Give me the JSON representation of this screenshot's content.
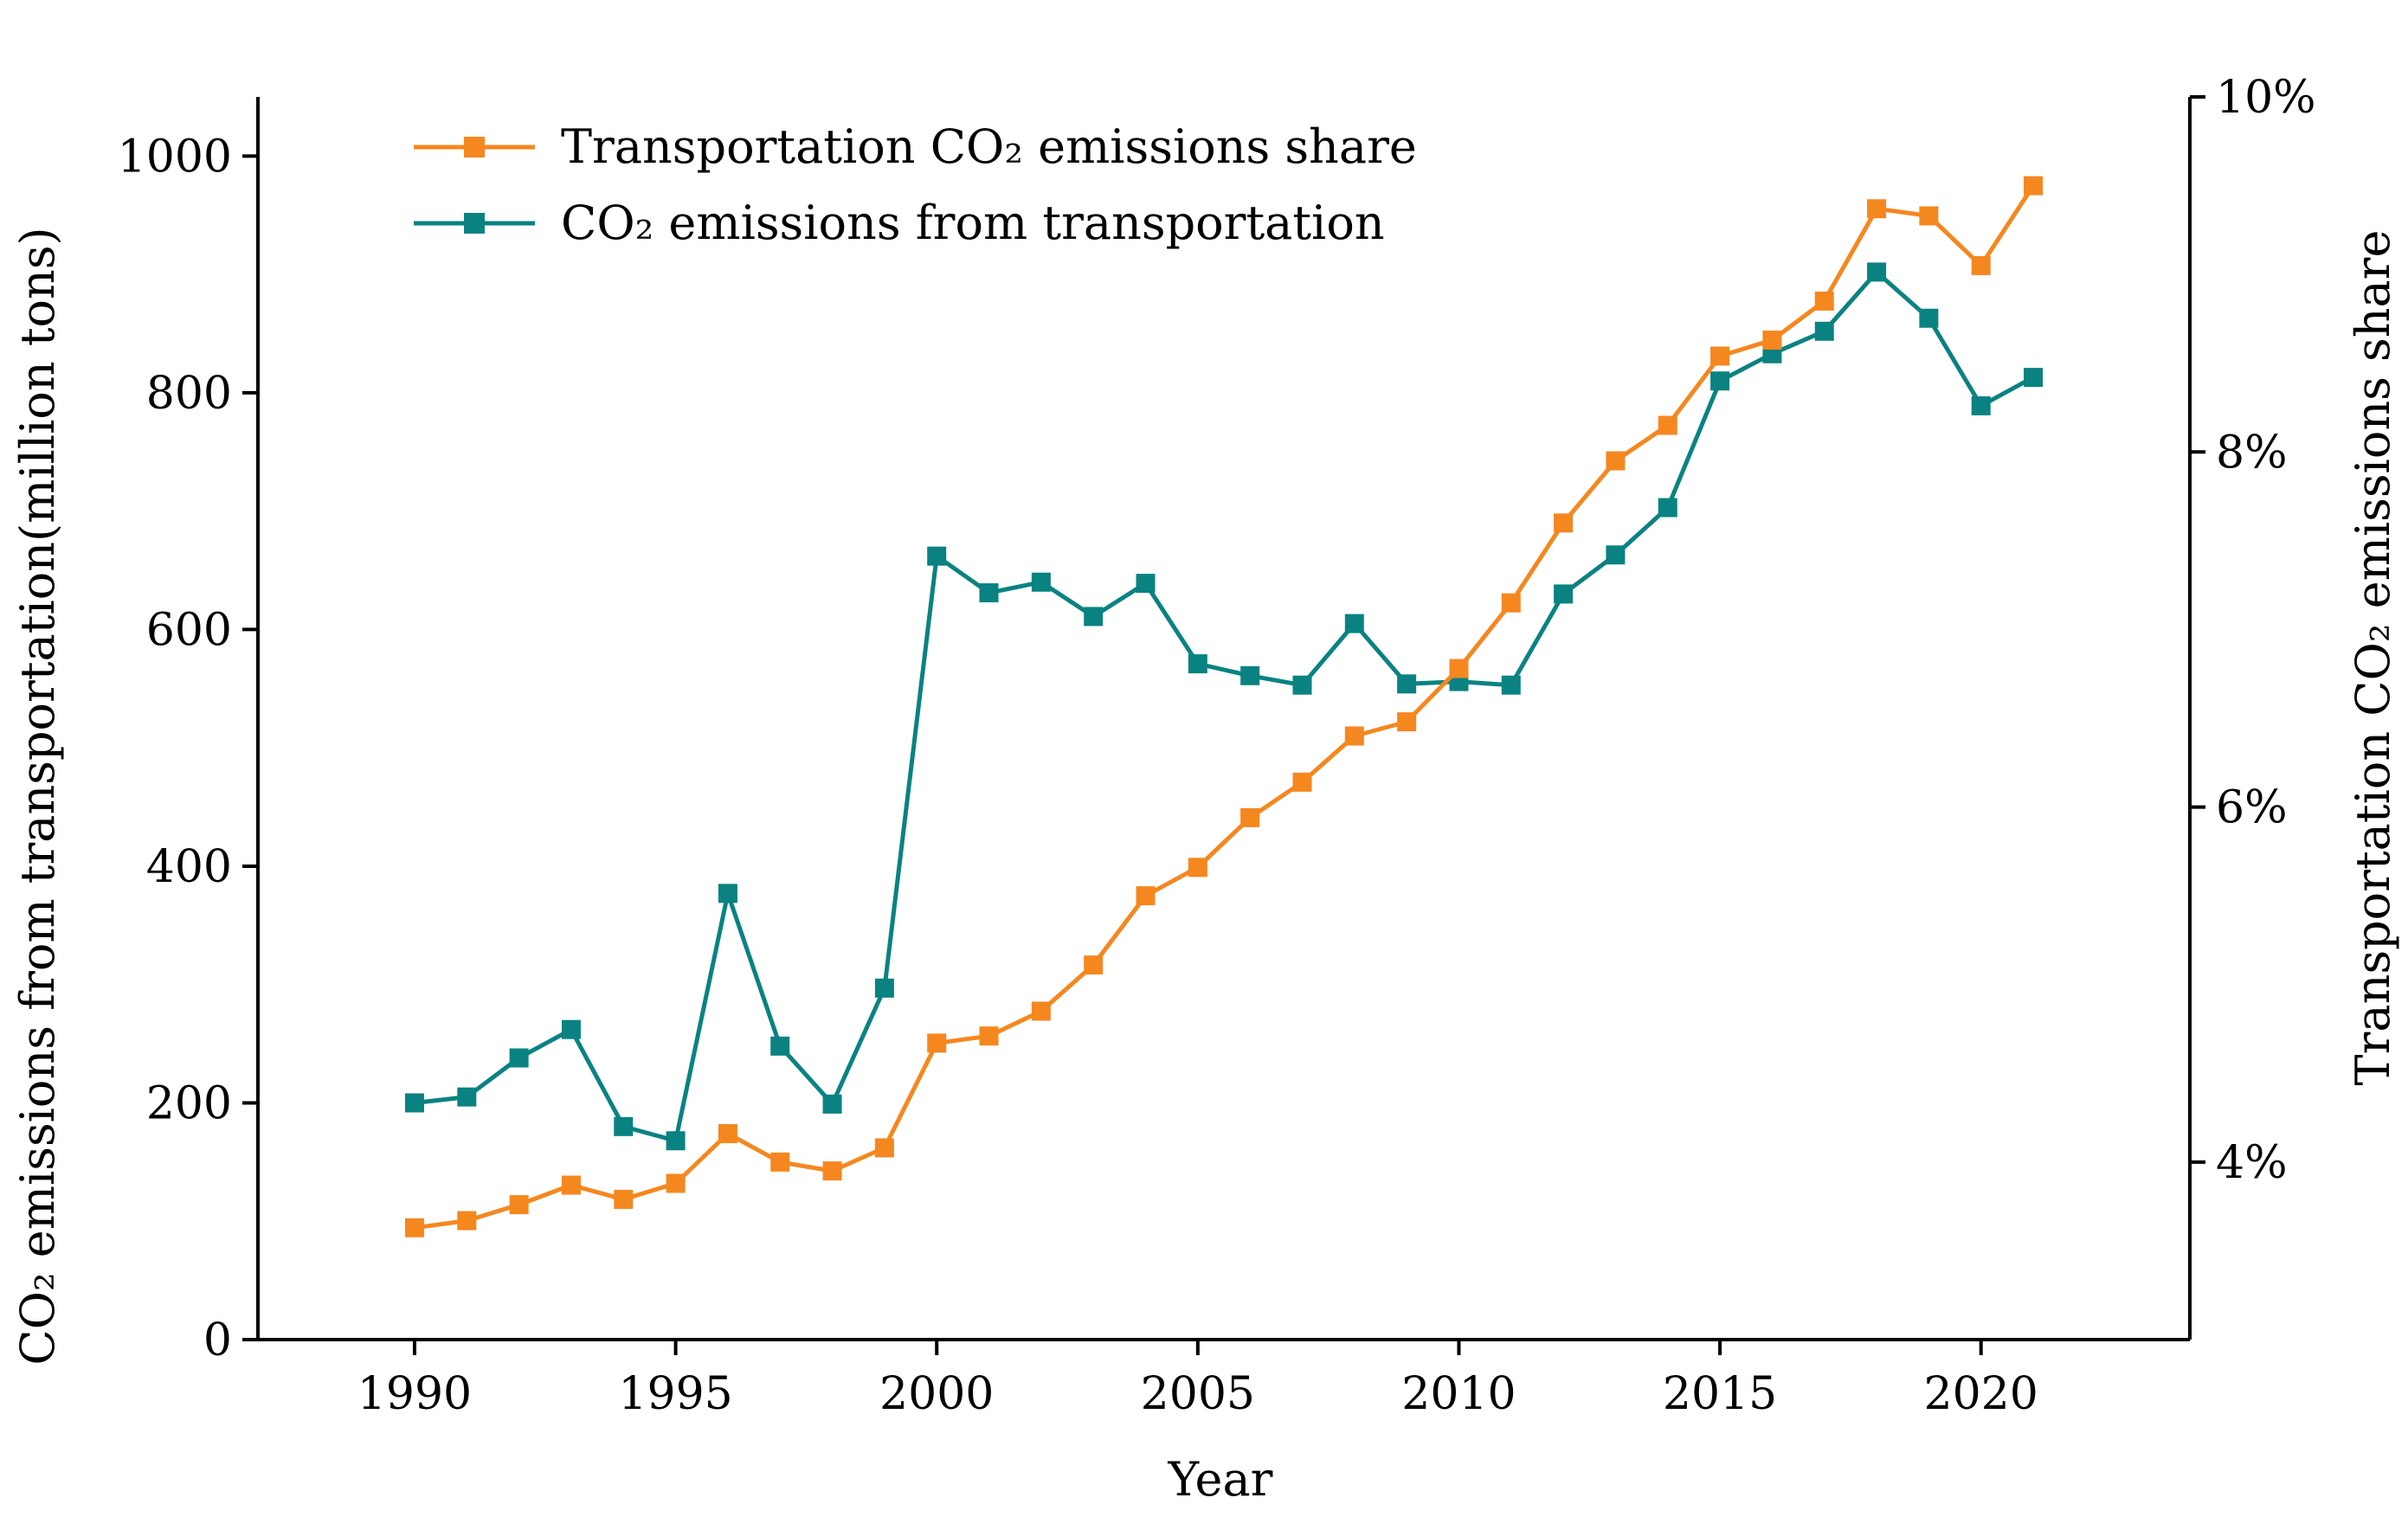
{
  "chart_data": {
    "type": "line",
    "title": "",
    "xlabel": "Year",
    "ylabel_left": "CO₂ emissions from transportation(million tons)",
    "ylabel_right": "Transportation CO₂ emissions share",
    "xlim": [
      1987,
      2024
    ],
    "ylim_left": [
      0,
      1050
    ],
    "ylim_right": [
      3.0,
      10.0
    ],
    "x_ticks": [
      1990,
      1995,
      2000,
      2005,
      2010,
      2015,
      2020
    ],
    "y_left_ticks": [
      0,
      200,
      400,
      600,
      800,
      1000
    ],
    "y_right_ticks": [
      4,
      6,
      8,
      10
    ],
    "y_right_tick_labels": [
      "4%",
      "6%",
      "8%",
      "10%"
    ],
    "legend": {
      "placement": "top-left"
    },
    "x": [
      1990,
      1991,
      1992,
      1993,
      1994,
      1995,
      1996,
      1997,
      1998,
      1999,
      2000,
      2001,
      2002,
      2003,
      2004,
      2005,
      2006,
      2007,
      2008,
      2009,
      2010,
      2011,
      2012,
      2013,
      2014,
      2015,
      2016,
      2017,
      2018,
      2019,
      2020,
      2021
    ],
    "series": [
      {
        "name": "Transportation CO₂ emissions share",
        "axis": "right",
        "color": "#F5871F",
        "values": [
          3.63,
          3.67,
          3.76,
          3.87,
          3.79,
          3.88,
          4.16,
          4.0,
          3.95,
          4.08,
          4.67,
          4.71,
          4.85,
          5.11,
          5.5,
          5.66,
          5.94,
          6.14,
          6.4,
          6.48,
          6.78,
          7.15,
          7.6,
          7.95,
          8.15,
          8.54,
          8.63,
          8.85,
          9.37,
          9.33,
          9.05,
          9.5
        ]
      },
      {
        "name": "CO₂ emissions from transportation",
        "axis": "left",
        "color": "#0A8282",
        "values": [
          200,
          205,
          238,
          262,
          180,
          168,
          377,
          248,
          199,
          297,
          662,
          631,
          640,
          611,
          639,
          571,
          561,
          553,
          605,
          554,
          556,
          553,
          630,
          663,
          703,
          810,
          833,
          852,
          902,
          863,
          789,
          813
        ]
      }
    ]
  }
}
